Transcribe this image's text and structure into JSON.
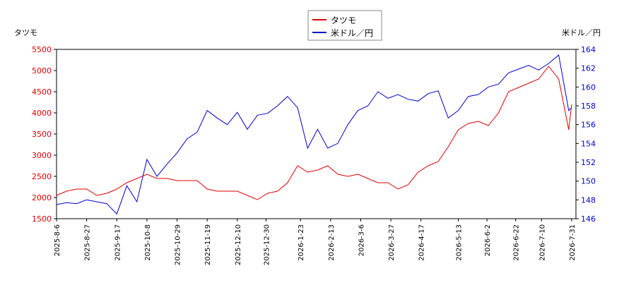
{
  "chart_data": {
    "type": "line",
    "y_axis_label": "タツモ",
    "y2_axis_label": "米ドル／円",
    "x": [
      "2025-8-6",
      "2025-8-13",
      "2025-8-20",
      "2025-8-27",
      "2025-9-3",
      "2025-9-10",
      "2025-9-17",
      "2025-9-24",
      "2025-10-1",
      "2025-10-8",
      "2025-10-15",
      "2025-10-22",
      "2025-10-29",
      "2025-11-5",
      "2025-11-12",
      "2025-11-19",
      "2025-11-26",
      "2025-12-3",
      "2025-12-10",
      "2025-12-17",
      "2025-12-24",
      "2025-12-31",
      "2026-1-7",
      "2026-1-14",
      "2026-1-21",
      "2026-1-28",
      "2026-2-4",
      "2026-2-11",
      "2026-2-18",
      "2026-2-25",
      "2026-3-4",
      "2026-3-11",
      "2026-3-18",
      "2026-3-25",
      "2026-4-1",
      "2026-4-8",
      "2026-4-15",
      "2026-4-22",
      "2026-4-29",
      "2026-5-6",
      "2026-5-13",
      "2026-5-20",
      "2026-5-27",
      "2026-6-3",
      "2026-6-10",
      "2026-6-17",
      "2026-6-24",
      "2026-7-1",
      "2026-7-8",
      "2026-7-15",
      "2026-7-22",
      "2026-7-29",
      "2026-7-31"
    ],
    "series": [
      {
        "name": "タツモ",
        "color": "#dd0000",
        "axis": "y",
        "values": [
          2050,
          2150,
          2200,
          2200,
          2050,
          2100,
          2200,
          2350,
          2450,
          2550,
          2450,
          2450,
          2400,
          2400,
          2400,
          2200,
          2150,
          2150,
          2150,
          2050,
          1950,
          2100,
          2150,
          2350,
          2750,
          2600,
          2650,
          2750,
          2550,
          2500,
          2550,
          2450,
          2350,
          2350,
          2200,
          2300,
          2600,
          2750,
          2850,
          3200,
          3600,
          3750,
          3800,
          3700,
          4000,
          4500,
          4600,
          4700,
          4800,
          5100,
          4800,
          3600,
          4200
        ]
      },
      {
        "name": "米ドル／円",
        "color": "#0000cc",
        "axis": "y2",
        "values": [
          147.5,
          147.7,
          147.6,
          148.0,
          147.8,
          147.6,
          146.5,
          149.5,
          147.8,
          152.3,
          150.5,
          151.8,
          153.0,
          154.5,
          155.2,
          157.5,
          156.7,
          156.0,
          157.3,
          155.5,
          157.0,
          157.2,
          158.0,
          159.0,
          157.8,
          153.5,
          155.5,
          153.5,
          154.0,
          156.0,
          157.5,
          158.0,
          159.5,
          158.8,
          159.2,
          158.7,
          158.5,
          159.3,
          159.6,
          156.7,
          157.5,
          159.0,
          159.2,
          160.0,
          160.3,
          161.5,
          161.9,
          162.3,
          161.8,
          162.5,
          163.4,
          157.5,
          157.8
        ]
      }
    ],
    "xlim": [
      "2025-8-6",
      "2026-8-3"
    ],
    "xticks": [
      "2025-8-6",
      "2025-8-27",
      "2025-9-17",
      "2025-10-8",
      "2025-10-29",
      "2025-11-19",
      "2025-12-10",
      "2025-12-30",
      "2026-1-23",
      "2026-2-13",
      "2026-3-6",
      "2026-3-27",
      "2026-4-17",
      "2026-5-13",
      "2026-6-2",
      "2026-6-22",
      "2026-7-10",
      "2026-7-31"
    ],
    "ylim": [
      1500,
      5500
    ],
    "yticks": [
      1500,
      2000,
      2500,
      3000,
      3500,
      4000,
      4500,
      5000,
      5500
    ],
    "y2lim": [
      146,
      164
    ],
    "y2ticks": [
      146,
      148,
      150,
      152,
      154,
      156,
      158,
      160,
      162,
      164
    ]
  }
}
